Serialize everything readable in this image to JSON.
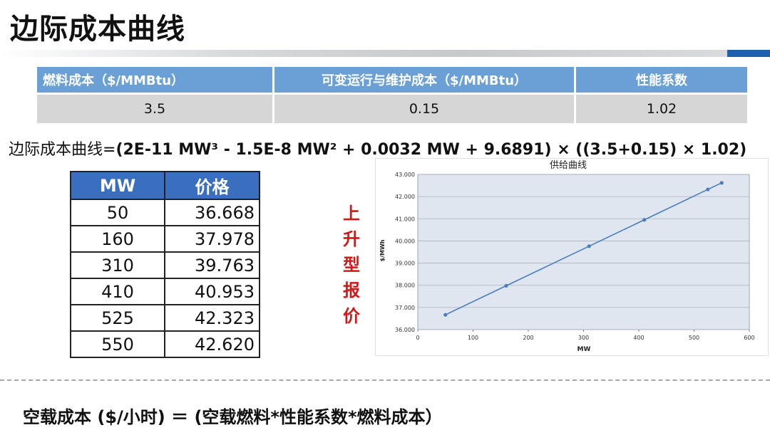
{
  "page": {
    "title": "边际成本曲线"
  },
  "cost_table": {
    "headers": [
      "燃料成本（$/MMBtu）",
      "可变运行与维护成本（$/MMBtu）",
      "性能系数"
    ],
    "values": [
      "3.5",
      "0.15",
      "1.02"
    ]
  },
  "formula": {
    "prefix": "边际成本曲线=",
    "expression": "(2E-11 MW³ - 1.5E-8 MW² + 0.0032 MW + 9.6891) × ((3.5+0.15) × 1.02)"
  },
  "price_table": {
    "headers": [
      "MW",
      "价格"
    ],
    "rows": [
      [
        "50",
        "36.668"
      ],
      [
        "160",
        "37.978"
      ],
      [
        "310",
        "39.763"
      ],
      [
        "410",
        "40.953"
      ],
      [
        "525",
        "42.323"
      ],
      [
        "550",
        "42.620"
      ]
    ]
  },
  "side_label": [
    "上",
    "升",
    "型",
    "报",
    "价"
  ],
  "chart_data": {
    "type": "line",
    "title": "供给曲线",
    "xlabel": "MW",
    "ylabel": "$/MWh",
    "x": [
      50,
      160,
      310,
      410,
      525,
      550
    ],
    "series": [
      {
        "values": [
          36.668,
          37.978,
          39.763,
          40.953,
          42.323,
          42.62
        ]
      }
    ],
    "xlim": [
      0,
      600
    ],
    "ylim": [
      36,
      43
    ],
    "xticks": [
      "0",
      "100",
      "200",
      "300",
      "400",
      "500",
      "600"
    ],
    "yticks": [
      "36.000",
      "37.000",
      "38.000",
      "39.000",
      "40.000",
      "41.000",
      "42.000",
      "43.000"
    ],
    "grid": "horizontal",
    "line_color": "#4a7ebb",
    "plot_background": "#dfe6ef"
  },
  "bottom_formula": "空载成本 ($/小时) ＝ (空载燃料*性能系数*燃料成本）"
}
